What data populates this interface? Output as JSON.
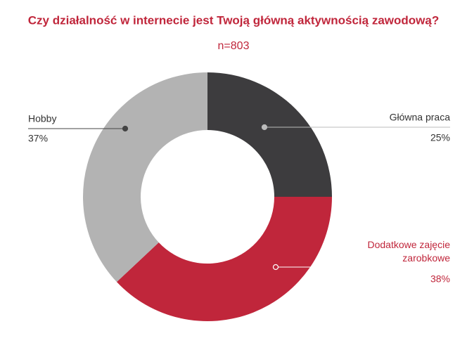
{
  "chart_data": {
    "type": "donut",
    "title": "Czy działalność w internecie jest Twoją główną aktywnością zawodową?",
    "subtitle": "n=803",
    "categories": [
      "Główna praca",
      "Dodatkowe zajęcie zarobkowe",
      "Hobby"
    ],
    "values": [
      25,
      38,
      37
    ],
    "value_labels": [
      "25%",
      "38%",
      "37%"
    ],
    "colors": [
      "#3d3c3e",
      "#c0263b",
      "#b3b3b3"
    ]
  }
}
